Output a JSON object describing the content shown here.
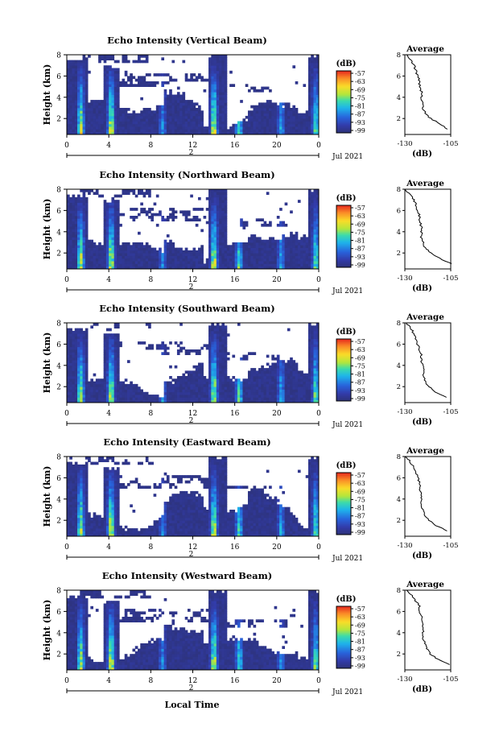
{
  "figure": {
    "ylabel": "Height (km)",
    "xlabel": "Local Time",
    "date_label": "Jul 2021",
    "day_label": "2",
    "colorbar_unit": "(dB)",
    "colorbar_ticks": [
      "-57",
      "-63",
      "-69",
      "-75",
      "-81",
      "-87",
      "-93",
      "-99"
    ],
    "avg_title": "Average",
    "avg_xlabel": "(dB)"
  },
  "chart_data": [
    {
      "type": "heatmap",
      "title": "Echo Intensity (Vertical Beam)",
      "xlabel": "Local Time",
      "ylabel": "Height (km)",
      "xticks": [
        "0",
        "4",
        "8",
        "12",
        "16",
        "20",
        "0"
      ],
      "yticks": [
        "2",
        "4",
        "6",
        "8"
      ],
      "xlim": [
        0,
        24
      ],
      "ylim": [
        0.5,
        8
      ],
      "colorbar": {
        "unit": "(dB)",
        "range": [
          -99,
          -54
        ]
      },
      "average_profile": {
        "title": "Average",
        "xlabel": "(dB)",
        "xlim": [
          -130,
          -105
        ],
        "ylim": [
          0.5,
          8
        ],
        "height": [
          1.0,
          1.5,
          2.0,
          2.5,
          3.0,
          3.5,
          4.0,
          4.5,
          5.0,
          5.5,
          6.0,
          6.5,
          7.0,
          7.5,
          8.0
        ],
        "value": [
          -107,
          -111,
          -116,
          -119,
          -120,
          -120,
          -121,
          -121,
          -122,
          -122,
          -123,
          -124,
          -125,
          -127,
          -129
        ]
      }
    },
    {
      "type": "heatmap",
      "title": "Echo Intensity (Northward Beam)",
      "xlabel": "Local Time",
      "ylabel": "Height (km)",
      "xticks": [
        "0",
        "4",
        "8",
        "12",
        "16",
        "20",
        "0"
      ],
      "yticks": [
        "2",
        "4",
        "6",
        "8"
      ],
      "xlim": [
        0,
        24
      ],
      "ylim": [
        0.5,
        8
      ],
      "colorbar": {
        "unit": "(dB)",
        "range": [
          -99,
          -54
        ]
      },
      "average_profile": {
        "title": "Average",
        "xlabel": "(dB)",
        "xlim": [
          -130,
          -105
        ],
        "ylim": [
          0.5,
          8
        ],
        "height": [
          1.0,
          1.5,
          2.0,
          2.5,
          3.0,
          3.5,
          4.0,
          4.5,
          5.0,
          5.5,
          6.0,
          6.5,
          7.0,
          7.5,
          8.0
        ],
        "value": [
          -105,
          -111,
          -116,
          -119,
          -120,
          -121,
          -121,
          -121,
          -122,
          -122,
          -123,
          -124,
          -125,
          -127,
          -130
        ]
      }
    },
    {
      "type": "heatmap",
      "title": "Echo Intensity (Southward Beam)",
      "xlabel": "Local Time",
      "ylabel": "Height (km)",
      "xticks": [
        "0",
        "4",
        "8",
        "12",
        "16",
        "20",
        "0"
      ],
      "yticks": [
        "2",
        "4",
        "6",
        "8"
      ],
      "xlim": [
        0,
        24
      ],
      "ylim": [
        0.5,
        8
      ],
      "colorbar": {
        "unit": "(dB)",
        "range": [
          -99,
          -54
        ]
      },
      "average_profile": {
        "title": "Average",
        "xlabel": "(dB)",
        "xlim": [
          -130,
          -105
        ],
        "ylim": [
          0.5,
          8
        ],
        "height": [
          1.0,
          1.5,
          2.0,
          2.5,
          3.0,
          3.5,
          4.0,
          4.5,
          5.0,
          5.5,
          6.0,
          6.5,
          7.0,
          7.5,
          8.0
        ],
        "value": [
          -107,
          -113,
          -117,
          -119,
          -120,
          -120,
          -120,
          -121,
          -121,
          -122,
          -123,
          -124,
          -125,
          -127,
          -129
        ]
      }
    },
    {
      "type": "heatmap",
      "title": "Echo Intensity (Eastward Beam)",
      "xlabel": "Local Time",
      "ylabel": "Height (km)",
      "xticks": [
        "0",
        "4",
        "8",
        "12",
        "16",
        "20",
        "0"
      ],
      "yticks": [
        "2",
        "4",
        "6",
        "8"
      ],
      "xlim": [
        0,
        24
      ],
      "ylim": [
        0.5,
        8
      ],
      "colorbar": {
        "unit": "(dB)",
        "range": [
          -99,
          -54
        ]
      },
      "average_profile": {
        "title": "Average",
        "xlabel": "(dB)",
        "xlim": [
          -130,
          -105
        ],
        "ylim": [
          0.5,
          8
        ],
        "height": [
          1.0,
          1.5,
          2.0,
          2.5,
          3.0,
          3.5,
          4.0,
          4.5,
          5.0,
          5.5,
          6.0,
          6.5,
          7.0,
          7.5,
          8.0
        ],
        "value": [
          -107,
          -113,
          -117,
          -119,
          -120,
          -121,
          -121,
          -121,
          -122,
          -122,
          -123,
          -124,
          -125,
          -127,
          -130
        ]
      }
    },
    {
      "type": "heatmap",
      "title": "Echo Intensity (Westward Beam)",
      "xlabel": "Local Time",
      "ylabel": "Height (km)",
      "xticks": [
        "0",
        "4",
        "8",
        "12",
        "16",
        "20",
        "0"
      ],
      "yticks": [
        "2",
        "4",
        "6",
        "8"
      ],
      "xlim": [
        0,
        24
      ],
      "ylim": [
        0.5,
        8
      ],
      "colorbar": {
        "unit": "(dB)",
        "range": [
          -99,
          -54
        ]
      },
      "average_profile": {
        "title": "Average",
        "xlabel": "(dB)",
        "xlim": [
          -130,
          -105
        ],
        "ylim": [
          0.5,
          8
        ],
        "height": [
          1.0,
          1.5,
          2.0,
          2.5,
          3.0,
          3.5,
          4.0,
          4.5,
          5.0,
          5.5,
          6.0,
          6.5,
          7.0,
          7.5,
          8.0
        ],
        "value": [
          -106,
          -112,
          -116,
          -118,
          -119,
          -120,
          -120,
          -120,
          -121,
          -121,
          -122,
          -122,
          -124,
          -126,
          -129
        ]
      }
    }
  ]
}
